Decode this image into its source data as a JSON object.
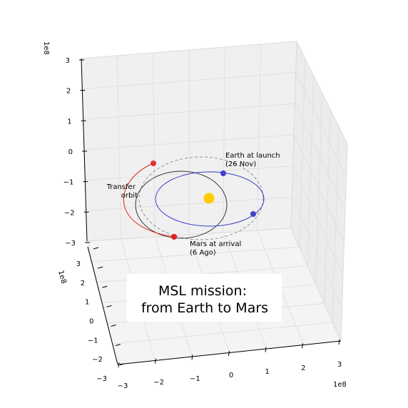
{
  "chart_data": {
    "type": "line",
    "title": "MSL mission:\nfrom Earth to Mars",
    "title_lines": [
      "MSL mission:",
      "from Earth to Mars"
    ],
    "axes": {
      "x": {
        "ticks": [
          "−3",
          "−2",
          "−1",
          "0",
          "1",
          "2",
          "3"
        ],
        "exponent": "1e8",
        "range": [
          -300000000.0,
          300000000.0
        ]
      },
      "y": {
        "ticks": [
          "−3",
          "−2",
          "−1",
          "0",
          "1",
          "2",
          "3"
        ],
        "exponent": "1e8",
        "range": [
          -300000000.0,
          300000000.0
        ]
      },
      "z": {
        "ticks": [
          "−3",
          "−2",
          "−1",
          "0",
          "1",
          "2",
          "3"
        ],
        "exponent": "1e8",
        "range": [
          -300000000.0,
          300000000.0
        ]
      }
    },
    "grid": true,
    "series": [
      {
        "name": "Earth orbit",
        "color": "#4040cc",
        "style": "solid",
        "kind": "ellipse",
        "semi_axis_km": 150000000.0
      },
      {
        "name": "Mars orbit",
        "color": "#888888",
        "style": "dashed",
        "kind": "ellipse",
        "semi_axis_km": 228000000.0
      },
      {
        "name": "Transfer orbit (full)",
        "color": "#333333",
        "style": "solid",
        "kind": "ellipse"
      },
      {
        "name": "Transfer orbit (flown)",
        "color": "#dd2222",
        "style": "solid",
        "kind": "arc"
      }
    ],
    "points": [
      {
        "name": "Sun",
        "color": "#ffcc00",
        "x": 0,
        "y": 0,
        "z": 0
      },
      {
        "name": "Earth at launch",
        "color": "#4040cc"
      },
      {
        "name": "Earth at arrival",
        "color": "#4040cc"
      },
      {
        "name": "Mars at launch",
        "color": "#dd2222"
      },
      {
        "name": "Mars at arrival",
        "color": "#dd2222"
      }
    ],
    "annotations": [
      {
        "lines": [
          "Earth at launch",
          "(26 Nov)"
        ]
      },
      {
        "lines": [
          "Mars at arrival",
          "(6 Ago)"
        ]
      },
      {
        "lines": [
          "Transfer",
          "orbit"
        ]
      }
    ]
  }
}
